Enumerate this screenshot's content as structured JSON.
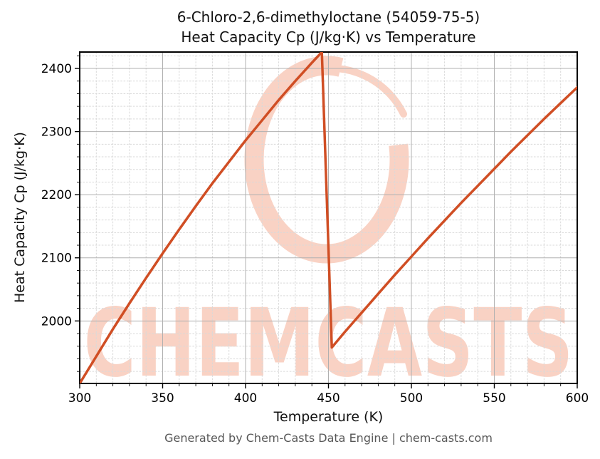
{
  "title": {
    "line1": "6-Chloro-2,6-dimethyloctane (54059-75-5)",
    "line2": "Heat Capacity Cp (J/kg·K) vs Temperature"
  },
  "footer": "Generated by Chem-Casts Data Engine | chem-casts.com",
  "watermark": {
    "text": "CHEMCASTS",
    "logo": "brush-circle-swoosh",
    "color": "#f9d2c4"
  },
  "colors": {
    "line": "#d04e24",
    "grid_major": "#b0b0b0",
    "grid_minor": "#d9d9d9",
    "spine": "#000000",
    "tick": "#000000",
    "title_text": "#111111",
    "footer_text": "#575757"
  },
  "chart_data": {
    "type": "line",
    "title": "6-Chloro-2,6-dimethyloctane (54059-75-5) — Heat Capacity Cp (J/kg·K) vs Temperature",
    "xlabel": "Temperature (K)",
    "ylabel": "Heat Capacity Cp (J/kg·K)",
    "xlim": [
      300,
      600
    ],
    "ylim": [
      1901,
      2426
    ],
    "x_major_ticks": [
      300,
      350,
      400,
      450,
      500,
      550,
      600
    ],
    "y_major_ticks": [
      2000,
      2100,
      2200,
      2300,
      2400
    ],
    "x_minor_step": 10,
    "y_minor_step": 20,
    "grid": true,
    "legend": "none",
    "line_color": "#d04e24",
    "line_width": 3.5,
    "series": [
      {
        "name": "Heat Capacity Cp",
        "x": [
          300,
          310,
          320,
          330,
          340,
          350,
          360,
          370,
          380,
          390,
          400,
          410,
          420,
          430,
          440,
          446,
          452,
          460,
          470,
          480,
          490,
          500,
          510,
          520,
          530,
          540,
          550,
          560,
          570,
          580,
          590,
          600
        ],
        "y": [
          1901,
          1944,
          1987,
          2028,
          2068,
          2107,
          2145,
          2182,
          2218,
          2252,
          2286,
          2318,
          2350,
          2380,
          2409,
          2426,
          1958,
          1983,
          2013,
          2043,
          2073,
          2102,
          2131,
          2159,
          2187,
          2214,
          2241,
          2268,
          2294,
          2320,
          2345,
          2370
        ]
      }
    ],
    "features": {
      "liquid_branch": {
        "from_K": 300,
        "to_K": 446,
        "cp_from": 1901,
        "cp_to": 2426
      },
      "discontinuity_drop": {
        "from": [
          446,
          2426
        ],
        "to": [
          452,
          1958
        ]
      },
      "gas_branch": {
        "from_K": 452,
        "to_K": 600,
        "cp_from": 1958,
        "cp_to": 2370
      }
    }
  }
}
